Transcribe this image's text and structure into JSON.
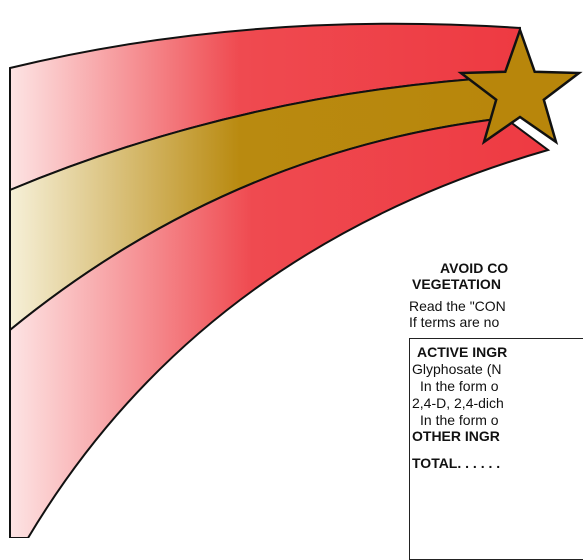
{
  "warning": {
    "lines": [
      "AVOID CO",
      "VEGETATION"
    ]
  },
  "intro": [
    "Read the \"CON",
    "If terms are no"
  ],
  "ingredients": {
    "heading": "ACTIVE INGR",
    "rows": [
      "Glyphosate (N",
      "In the form o",
      "2,4-D, 2,4-dich",
      "In the form o"
    ],
    "other": "OTHER INGR",
    "total": "TOTAL. . . . . ."
  }
}
